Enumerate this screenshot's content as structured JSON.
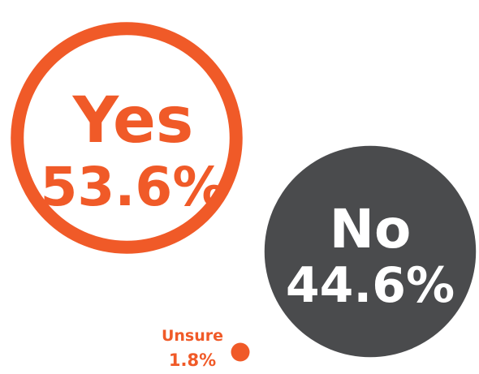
{
  "colors": {
    "yes": "#f05a28",
    "no": "#4a4b4d",
    "unsure": "#f05a28",
    "background": "#ffffff",
    "no_text": "#ffffff"
  },
  "chart_data": {
    "type": "bubble",
    "categories": [
      "Yes",
      "No",
      "Unsure"
    ],
    "values": [
      53.6,
      44.6,
      1.8
    ],
    "value_labels": [
      "53.6%",
      "44.6%",
      "1.8%"
    ],
    "unit": "%",
    "legend": false,
    "styles": [
      "outline",
      "filled",
      "filled"
    ]
  }
}
